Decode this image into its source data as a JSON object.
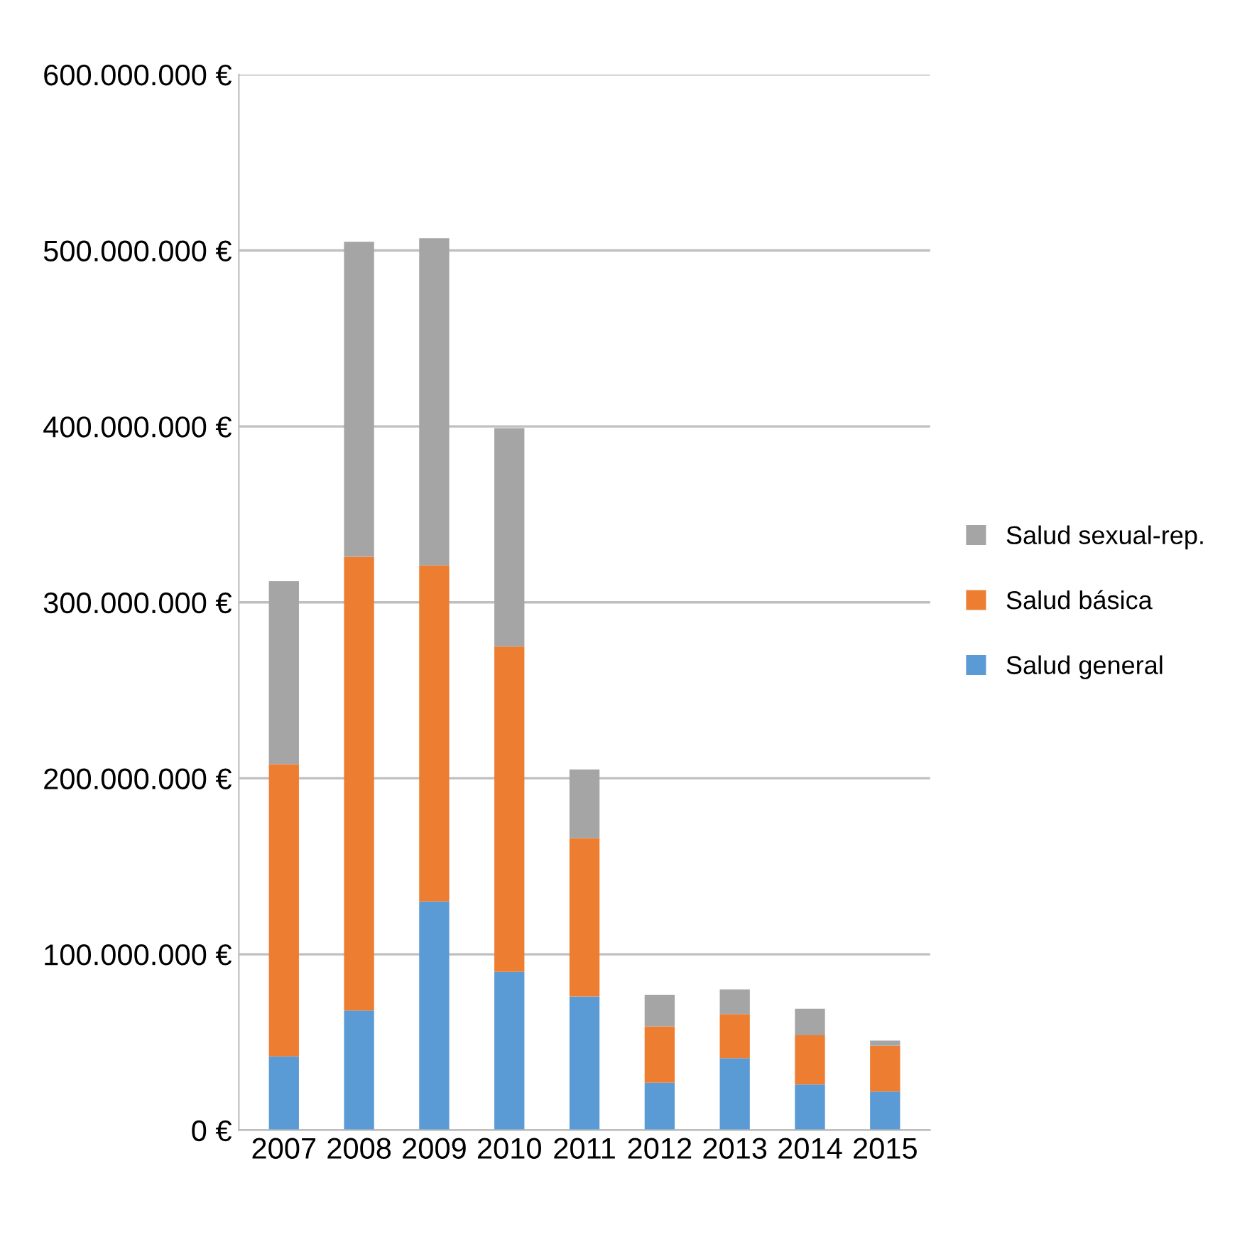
{
  "chart_data": {
    "type": "bar",
    "stacked": true,
    "categories": [
      "2007",
      "2008",
      "2009",
      "2010",
      "2011",
      "2012",
      "2013",
      "2014",
      "2015"
    ],
    "series": [
      {
        "name": "Salud general",
        "color": "#5b9bd5",
        "values": [
          42000000,
          68000000,
          130000000,
          90000000,
          76000000,
          27000000,
          41000000,
          26000000,
          22000000
        ]
      },
      {
        "name": "Salud básica",
        "color": "#ed7d31",
        "values": [
          166000000,
          258000000,
          191000000,
          185000000,
          90000000,
          32000000,
          25000000,
          28000000,
          26000000
        ]
      },
      {
        "name": "Salud sexual-rep.",
        "color": "#a5a5a5",
        "values": [
          104000000,
          179000000,
          186000000,
          124000000,
          39000000,
          18000000,
          14000000,
          15000000,
          3000000
        ]
      }
    ],
    "ylim": [
      0,
      600000000
    ],
    "yticks": [
      {
        "value": 0,
        "label": "0 €"
      },
      {
        "value": 100000000,
        "label": "100.000.000 €"
      },
      {
        "value": 200000000,
        "label": "200.000.000 €"
      },
      {
        "value": 300000000,
        "label": "300.000.000 €"
      },
      {
        "value": 400000000,
        "label": "400.000.000 €"
      },
      {
        "value": 500000000,
        "label": "500.000.000 €"
      },
      {
        "value": 600000000,
        "label": "600.000.000 €"
      }
    ],
    "grid": "y",
    "legend": "right"
  }
}
